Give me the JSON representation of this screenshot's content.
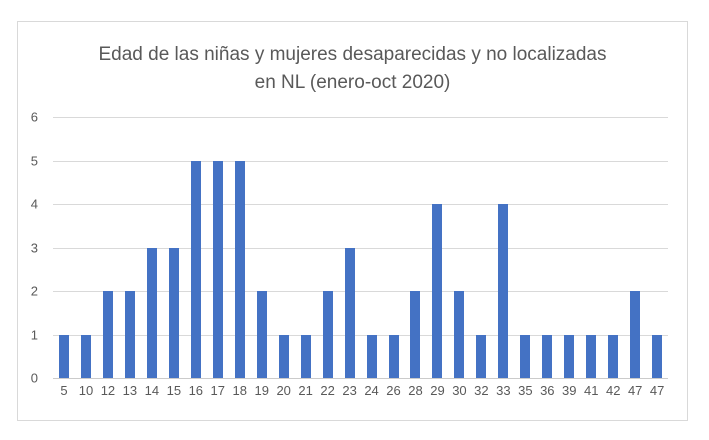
{
  "chart": {
    "background": "#FFFFFF",
    "border_color": "#D9D9D9"
  },
  "chart_data": {
    "type": "bar",
    "title": "Edad de las niñas y mujeres desaparecidas y no localizadas en NL (enero-oct 2020)",
    "xlabel": "",
    "ylabel": "",
    "categories": [
      "5",
      "10",
      "12",
      "13",
      "14",
      "15",
      "16",
      "17",
      "18",
      "19",
      "20",
      "21",
      "22",
      "23",
      "24",
      "26",
      "28",
      "29",
      "30",
      "32",
      "33",
      "35",
      "36",
      "39",
      "41",
      "42",
      "47",
      "47"
    ],
    "values": [
      1,
      1,
      2,
      2,
      3,
      3,
      5,
      5,
      5,
      2,
      1,
      1,
      2,
      3,
      1,
      1,
      2,
      4,
      2,
      1,
      4,
      1,
      1,
      1,
      1,
      1,
      2,
      1
    ],
    "yticks": [
      0,
      1,
      2,
      3,
      4,
      5,
      6
    ],
    "ylim": [
      0,
      6
    ],
    "grid": true,
    "legend": false,
    "bar_color": "#4472C4",
    "gridline_color": "#D9D9D9",
    "axis_text_color": "#595959",
    "title_color": "#595959"
  }
}
